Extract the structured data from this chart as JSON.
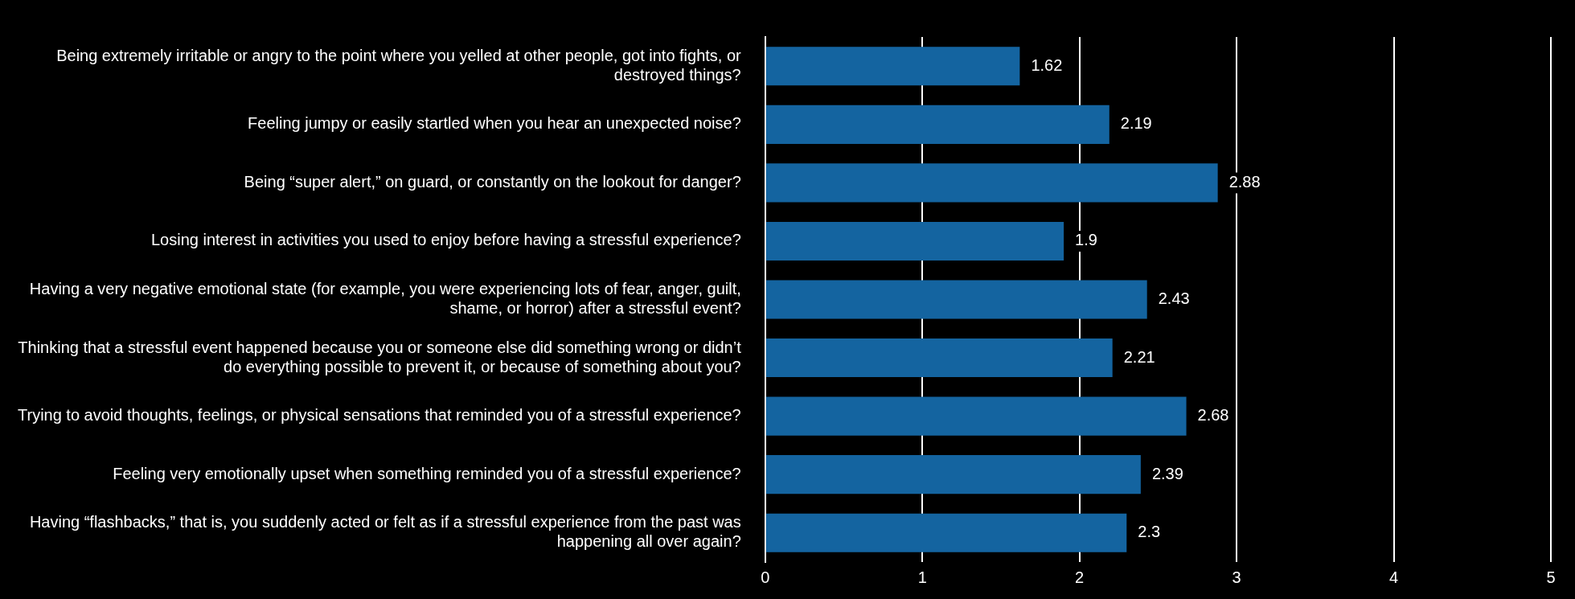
{
  "chart_data": {
    "type": "bar",
    "orientation": "horizontal",
    "categories": [
      "Being extremely irritable or angry to the point where you yelled at other people, got into fights, or destroyed things?",
      "Feeling jumpy or easily startled when you hear an unexpected noise?",
      "Being “super alert,” on guard, or constantly on the lookout for danger?",
      "Losing interest in activities you used to enjoy before having a stressful experience?",
      "Having a very negative emotional state (for example, you were experiencing lots of fear, anger, guilt, shame, or horror) after a stressful event?",
      "Thinking that a stressful event happened because you or someone else did something wrong or didn’t do everything possible to prevent it, or because of something about you?",
      "Trying to avoid thoughts, feelings, or physical sensations that reminded you of a stressful experience?",
      "Feeling very emotionally upset when something reminded you of a stressful experience?",
      "Having “flashbacks,” that is, you suddenly acted or felt as if a stressful experience from the past was happening all over again?"
    ],
    "values": [
      1.62,
      2.19,
      2.88,
      1.9,
      2.43,
      2.21,
      2.68,
      2.39,
      2.3
    ],
    "color": "#1464a0",
    "xlim": [
      0,
      5
    ],
    "xticks": [
      0,
      1,
      2,
      3,
      4,
      5
    ],
    "grid": "x",
    "data_labels": true,
    "legend": false
  }
}
